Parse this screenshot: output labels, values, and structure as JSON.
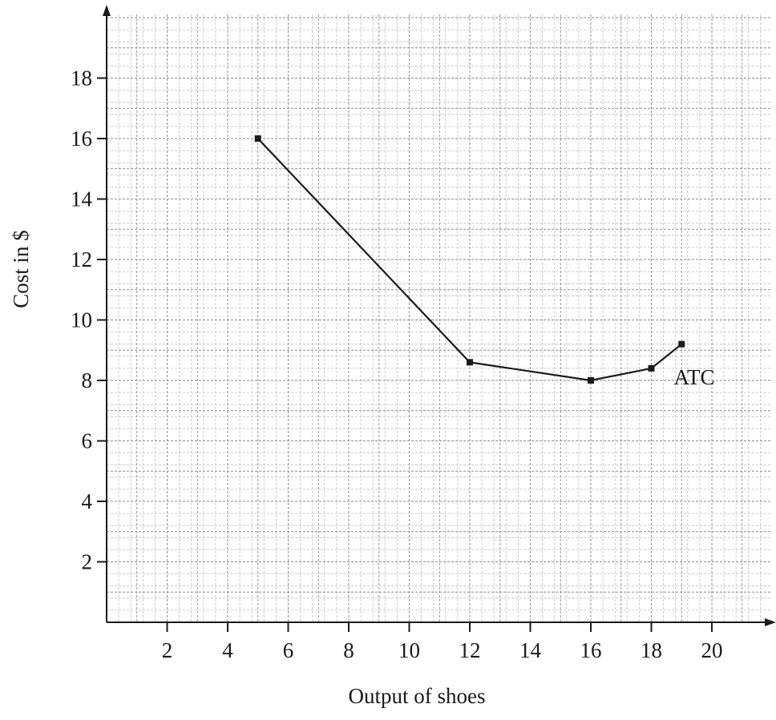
{
  "chart_data": {
    "type": "line",
    "title": "",
    "xlabel": "Output of shoes",
    "ylabel": "Cost in $",
    "xlim": [
      0,
      22
    ],
    "ylim": [
      0,
      20
    ],
    "xticks": [
      2,
      4,
      6,
      8,
      10,
      12,
      14,
      16,
      18,
      20
    ],
    "yticks": [
      2,
      4,
      6,
      8,
      10,
      12,
      14,
      16,
      18
    ],
    "grid": true,
    "grid_minor_step": 0.4,
    "series": [
      {
        "name": "ATC",
        "x": [
          5,
          12,
          16,
          18,
          19
        ],
        "y": [
          16,
          8.6,
          8,
          8.4,
          9.2
        ],
        "marker": "square",
        "color": "#1a1a1a"
      }
    ],
    "colors": {
      "line": "#1a1a1a",
      "grid_minor": "#bdbdbd",
      "grid_major": "#8a8a8a",
      "axis": "#1a1a1a"
    }
  }
}
